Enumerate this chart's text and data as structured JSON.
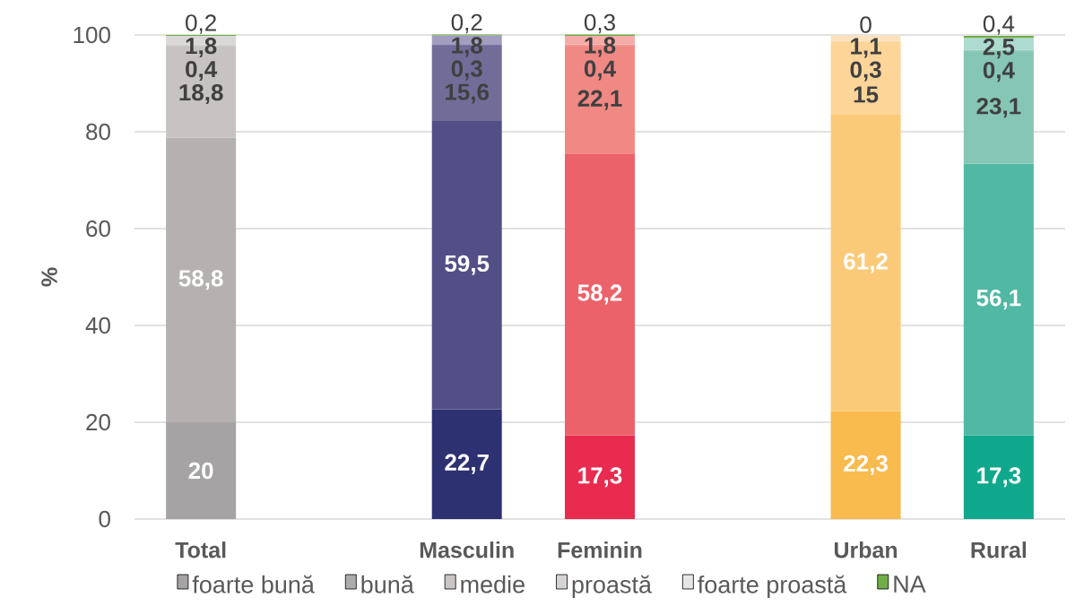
{
  "chart_data": {
    "type": "bar",
    "stacked": true,
    "ylabel": "%",
    "categories": [
      "Total",
      null,
      "Masculin",
      "Feminin",
      null,
      "Urban",
      "Rural"
    ],
    "ylim": [
      0,
      100
    ],
    "yticks": [
      0,
      20,
      40,
      60,
      80,
      100
    ],
    "grid": "y",
    "legend": "bottom",
    "series": [
      {
        "name": "foarte bună",
        "color": "#a5a3a3",
        "colors": [
          "#a5a3a3",
          null,
          "#2e3171",
          "#e92b50",
          null,
          "#f9ba4e",
          "#10a88c"
        ],
        "values": [
          20,
          null,
          22.7,
          17.3,
          null,
          22.3,
          17.3
        ],
        "value_labels": [
          "20",
          null,
          "22,7",
          "17,3",
          null,
          "22,3",
          "17,3"
        ]
      },
      {
        "name": "bună",
        "color": "#aeabab",
        "colors": [
          "#b4b1b0",
          null,
          "#524f87",
          "#ec626a",
          null,
          "#fbca79",
          "#51b8a4"
        ],
        "values": [
          58.8,
          null,
          59.5,
          58.2,
          null,
          61.2,
          56.1
        ],
        "value_labels": [
          "58,8",
          null,
          "59,5",
          "58,2",
          null,
          "61,2",
          "56,1"
        ]
      },
      {
        "name": "medie",
        "color": "#c9c5c4",
        "colors": [
          "#c6c3c2",
          null,
          "#726c99",
          "#f08884",
          null,
          "#fdd599",
          "#86c6b5"
        ],
        "values": [
          18.8,
          null,
          15.6,
          22.1,
          null,
          15,
          23.1
        ],
        "value_labels": [
          "18,8",
          null,
          "15,6",
          "22,1",
          null,
          "15",
          "23,1"
        ]
      },
      {
        "name": "proastă",
        "color": "#d6d4d3",
        "colors": [
          "#cfcccb",
          null,
          "#7d77a3",
          "#f29490",
          null,
          "#fdd9a4",
          "#90cbbb"
        ],
        "values": [
          0.4,
          null,
          0.3,
          0.4,
          null,
          0.3,
          0.4
        ],
        "value_labels": [
          "0,4",
          null,
          "0,3",
          "0,4",
          null,
          "0,3",
          "0,4"
        ]
      },
      {
        "name": "foarte proastă",
        "color": "#e7e6e6",
        "colors": [
          "#d9d8d7",
          null,
          "#a29ec1",
          "#f6aca8",
          null,
          "#fee2bd",
          "#acdbcf"
        ],
        "values": [
          1.8,
          null,
          1.8,
          1.8,
          null,
          1.1,
          2.5
        ],
        "value_labels": [
          "1,8",
          null,
          "1,8",
          "1,8",
          null,
          "1,1",
          "2,5"
        ]
      },
      {
        "name": "NA",
        "color": "#70ad47",
        "colors": [
          "#70ad47",
          null,
          "#70ad47",
          "#70ad47",
          null,
          "#70ad47",
          "#70ad47"
        ],
        "values": [
          0.2,
          null,
          0.2,
          0.3,
          null,
          0,
          0.4
        ],
        "value_labels": [
          "0,2",
          null,
          "0,2",
          "0,3",
          null,
          "0",
          "0,4"
        ]
      }
    ]
  }
}
